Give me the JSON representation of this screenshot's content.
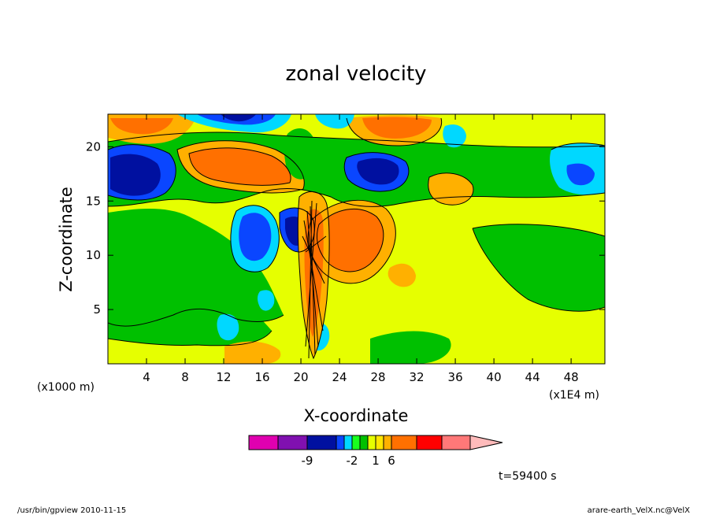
{
  "chart_data": {
    "type": "heatmap",
    "title": "zonal velocity",
    "xlabel": "X-coordinate",
    "ylabel": "Z-coordinate",
    "x_unit": "(x1E4 m)",
    "y_unit": "(x1000 m)",
    "xlim": [
      0,
      51.5
    ],
    "ylim": [
      0,
      23
    ],
    "x_ticks": [
      4,
      8,
      12,
      16,
      20,
      24,
      28,
      32,
      36,
      40,
      44,
      48
    ],
    "y_ticks": [
      5,
      10,
      15,
      20
    ],
    "colorbar": {
      "colors": [
        "#e000b0",
        "#8010b0",
        "#0010a0",
        "#0a46ff",
        "#00d8ff",
        "#19ff1e",
        "#00c000",
        "#e6ff00",
        "#ffe600",
        "#ffb000",
        "#ff7000",
        "#ff0000",
        "#ff7878",
        "#ffbbbb"
      ],
      "labels": [
        {
          "text": "-9",
          "boundary": 2
        },
        {
          "text": "-2",
          "boundary": 5
        },
        {
          "text": "1",
          "boundary": 8
        },
        {
          "text": "6",
          "boundary": 10
        }
      ]
    },
    "time_label": "t=59400 s"
  },
  "footer": {
    "left": "/usr/bin/gpview   2010-11-15",
    "right": "arare-earth_VelX.nc@VelX"
  }
}
